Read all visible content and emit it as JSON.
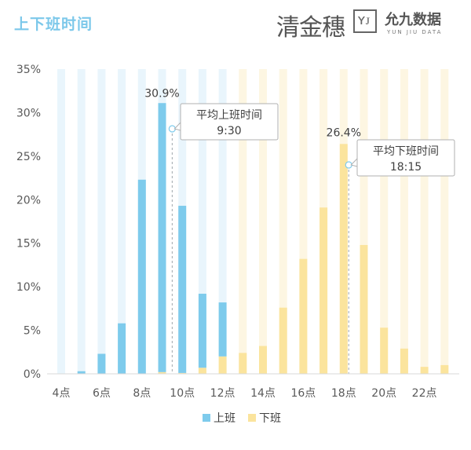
{
  "title": "上下班时间",
  "brand_left": "清金穗",
  "brand_right": {
    "name": "允九数据",
    "sub": "YUN JIU DATA"
  },
  "colors": {
    "commute_in": "#7ecbec",
    "commute_out": "#fbe49d",
    "bg_in": "#e9f5fc",
    "bg_out": "#fdf6e2",
    "title": "#7cc8ea"
  },
  "chart_data": {
    "type": "bar",
    "stacked": true,
    "x_hours": [
      4,
      5,
      6,
      7,
      8,
      9,
      10,
      11,
      12,
      13,
      14,
      15,
      16,
      17,
      18,
      19,
      20,
      21,
      22,
      23
    ],
    "xticks": [
      "4点",
      "6点",
      "8点",
      "10点",
      "12点",
      "14点",
      "16点",
      "18点",
      "20点",
      "22点"
    ],
    "yticks": [
      "0%",
      "5%",
      "10%",
      "15%",
      "20%",
      "25%",
      "30%",
      "35%"
    ],
    "ylim": [
      0,
      35
    ],
    "series": [
      {
        "name": "上班",
        "values": [
          0,
          0.3,
          2.3,
          5.8,
          22.3,
          30.9,
          19.2,
          8.5,
          6.2,
          0,
          0,
          0,
          0,
          0,
          0,
          0,
          0,
          0,
          0,
          0
        ]
      },
      {
        "name": "下班",
        "values": [
          0,
          0,
          0,
          0,
          0,
          0.2,
          0.1,
          0.7,
          2.0,
          2.4,
          3.2,
          7.6,
          13.2,
          19.1,
          26.4,
          14.8,
          5.3,
          2.9,
          0.8,
          1.0
        ]
      }
    ],
    "annotations": [
      {
        "label": "30.9%"
      },
      {
        "label": "26.4%"
      },
      {
        "line1": "平均上班时间",
        "line2": "9:30",
        "at": 9.5
      },
      {
        "line1": "平均下班时间",
        "line2": "18:15",
        "at": 18.25
      }
    ],
    "legend": [
      "上班",
      "下班"
    ],
    "legend_position": "bottom"
  }
}
